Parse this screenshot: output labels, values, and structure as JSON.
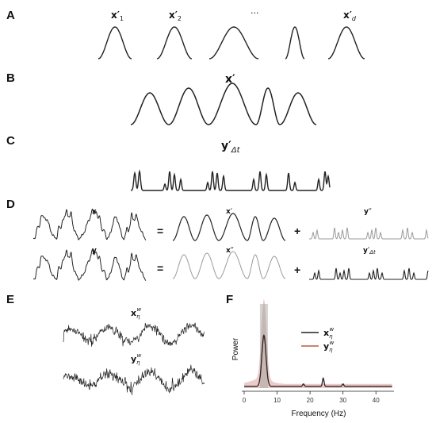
{
  "panels": {
    "A": {
      "letter": "A",
      "labels": [
        {
          "base": "x",
          "prime": "′",
          "sub": "1"
        },
        {
          "base": "x",
          "prime": "′",
          "sub": "2"
        },
        {
          "base": "",
          "prime": "",
          "sub": "",
          "text": "···"
        },
        {
          "base": "x",
          "prime": "′",
          "sub": "d"
        }
      ]
    },
    "B": {
      "letter": "B",
      "label": {
        "base": "x",
        "prime": "′"
      }
    },
    "C": {
      "letter": "C",
      "label": {
        "base": "y",
        "prime": "′",
        "sub": "Δt"
      }
    },
    "D": {
      "letter": "D",
      "row1": {
        "lhs": "x",
        "op1": "=",
        "mid": "x′",
        "op2": "+",
        "rhs": "y″"
      },
      "row2": {
        "lhs": "y",
        "op1": "=",
        "mid": "x″",
        "op2": "+",
        "rhs": "y′",
        "rhs_sub": "Δt"
      }
    },
    "E": {
      "letter": "E",
      "trace1": {
        "base": "x",
        "sub": "η",
        "sup": "w"
      },
      "trace2": {
        "base": "y",
        "sub": "η",
        "sup": "w"
      }
    },
    "F": {
      "letter": "F",
      "legend": [
        {
          "base": "x",
          "sub": "η",
          "sup": "w",
          "color": "#222222"
        },
        {
          "base": "y",
          "sub": "η",
          "sup": "w",
          "color": "#b5613a"
        }
      ]
    }
  },
  "chart_data": {
    "type": "line",
    "xlabel": "Frequency (Hz)",
    "ylabel": "Power",
    "xlim": [
      0,
      45
    ],
    "x_ticks": [
      0,
      10,
      20,
      30,
      40
    ],
    "series": [
      {
        "peaks": [
          {
            "x": 6,
            "height": 0.62
          },
          {
            "x": 18,
            "height": 0.03
          },
          {
            "x": 24,
            "height": 0.1
          },
          {
            "x": 30,
            "height": 0.03
          }
        ],
        "color": "#222222"
      },
      {
        "peaks": [
          {
            "x": 6,
            "height": 0.6
          },
          {
            "x": 18,
            "height": 0.03
          },
          {
            "x": 24,
            "height": 0.1
          },
          {
            "x": 30,
            "height": 0.03
          }
        ],
        "color": "#b5613a"
      }
    ],
    "band_color": "#e8c2c2",
    "grid": false,
    "legend_position": "top-right"
  },
  "colors": {
    "line_dark": "#222222",
    "line_light": "#9a9a9a",
    "spectrum_orange": "#b5613a",
    "spectrum_band": "#e8c2c2"
  }
}
